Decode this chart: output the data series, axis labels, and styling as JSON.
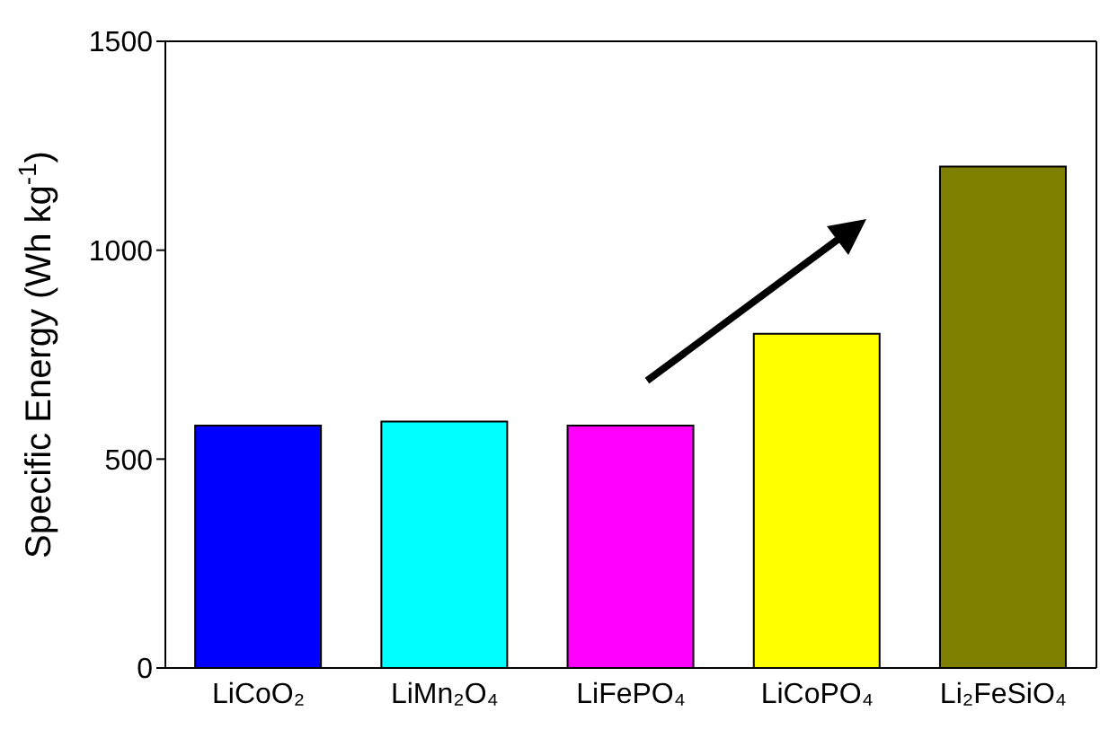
{
  "chart_data": {
    "type": "bar",
    "categories": [
      "LiCoO₂",
      "LiMn₂O₄",
      "LiFePO₄",
      "LiCoPO₄",
      "Li₂FeSiO₄"
    ],
    "values": [
      580,
      590,
      580,
      800,
      1200
    ],
    "colors": [
      "#0000ff",
      "#00ffff",
      "#ff00ff",
      "#ffff00",
      "#808000"
    ],
    "ylabel": "Specific Energy (Wh kg$^{-1}$)",
    "ylim": [
      0,
      1500
    ],
    "yticks": [
      0,
      500,
      1000,
      1500
    ],
    "grid": false
  }
}
